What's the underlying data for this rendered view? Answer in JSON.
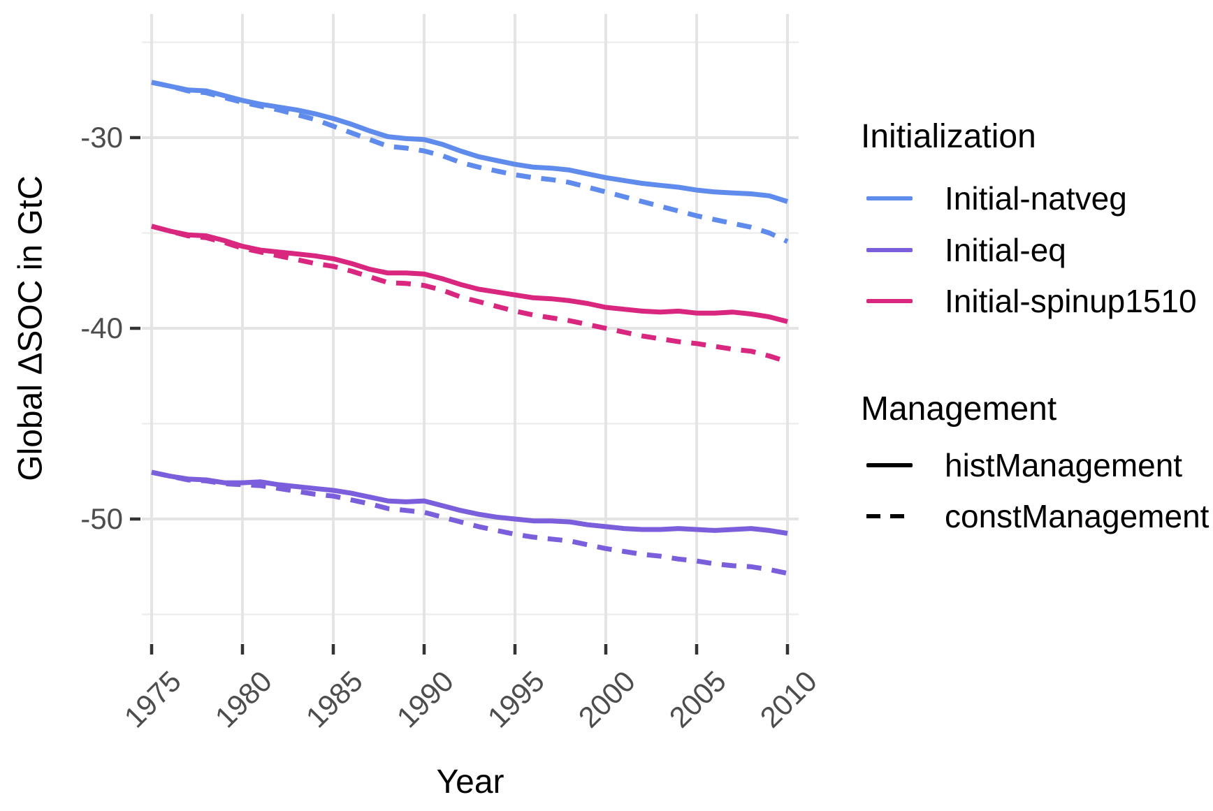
{
  "figure": {
    "x_axis_title": "Year",
    "y_axis_title": "Global ΔSOC in GtC"
  },
  "legend": {
    "initialization": {
      "title": "Initialization",
      "items": [
        {
          "label": "Initial-natveg",
          "color": "#5E8BEC"
        },
        {
          "label": "Initial-eq",
          "color": "#7A5EDC"
        },
        {
          "label": "Initial-spinup1510",
          "color": "#D9267E"
        }
      ]
    },
    "management": {
      "title": "Management",
      "items": [
        {
          "label": "histManagement",
          "linetype": "solid",
          "color": "#000000"
        },
        {
          "label": "constManagement",
          "linetype": "dashed",
          "color": "#000000"
        }
      ]
    }
  },
  "colors": {
    "major_gridline": "#e4e4e4",
    "minor_gridline": "#ededed",
    "tick_mark": "#333333",
    "tick_label": "#4d4d4d",
    "background": "#ffffff"
  },
  "chart_data": {
    "type": "line",
    "title": "",
    "xlabel": "Year",
    "ylabel": "Global ΔSOC in GtC",
    "legend_position": "right",
    "grid": "on",
    "xlim": [
      1973.5,
      2011.5
    ],
    "ylim": [
      -56.5,
      -23.5
    ],
    "x_ticks": [
      1975,
      1980,
      1985,
      1990,
      1995,
      2000,
      2005,
      2010
    ],
    "y_ticks": [
      -30,
      -40,
      -50
    ],
    "y_minor_ticks": [
      -25,
      -35,
      -45,
      -55
    ],
    "x": [
      1975,
      1976,
      1977,
      1978,
      1979,
      1980,
      1981,
      1982,
      1983,
      1984,
      1985,
      1986,
      1987,
      1988,
      1989,
      1990,
      1991,
      1992,
      1993,
      1994,
      1995,
      1996,
      1997,
      1998,
      1999,
      2000,
      2001,
      2002,
      2003,
      2004,
      2005,
      2006,
      2007,
      2008,
      2009,
      2010
    ],
    "series": [
      {
        "name": "Initial-natveg",
        "management": "constManagement",
        "color": "#5E8BEC",
        "linetype": "dashed",
        "values": [
          -27.1,
          -27.3,
          -27.55,
          -27.65,
          -27.9,
          -28.15,
          -28.35,
          -28.55,
          -28.8,
          -29.05,
          -29.4,
          -29.75,
          -30.1,
          -30.45,
          -30.55,
          -30.7,
          -30.95,
          -31.3,
          -31.55,
          -31.75,
          -31.95,
          -32.1,
          -32.2,
          -32.35,
          -32.6,
          -32.85,
          -33.1,
          -33.35,
          -33.6,
          -33.85,
          -34.1,
          -34.3,
          -34.5,
          -34.7,
          -35.0,
          -35.45
        ]
      },
      {
        "name": "Initial-natveg",
        "management": "histManagement",
        "color": "#5E8BEC",
        "linetype": "solid",
        "values": [
          -27.1,
          -27.3,
          -27.5,
          -27.55,
          -27.8,
          -28.05,
          -28.25,
          -28.4,
          -28.55,
          -28.75,
          -29.0,
          -29.3,
          -29.65,
          -29.95,
          -30.05,
          -30.1,
          -30.35,
          -30.7,
          -31.0,
          -31.2,
          -31.4,
          -31.55,
          -31.6,
          -31.7,
          -31.9,
          -32.1,
          -32.25,
          -32.4,
          -32.5,
          -32.6,
          -32.75,
          -32.85,
          -32.9,
          -32.95,
          -33.05,
          -33.35
        ]
      },
      {
        "name": "Initial-spinup1510",
        "management": "constManagement",
        "color": "#D9267E",
        "linetype": "dashed",
        "values": [
          -34.65,
          -34.9,
          -35.15,
          -35.25,
          -35.5,
          -35.8,
          -36.0,
          -36.2,
          -36.4,
          -36.6,
          -36.75,
          -37.0,
          -37.3,
          -37.6,
          -37.65,
          -37.75,
          -38.0,
          -38.35,
          -38.6,
          -38.85,
          -39.1,
          -39.3,
          -39.45,
          -39.6,
          -39.8,
          -40.0,
          -40.2,
          -40.4,
          -40.55,
          -40.7,
          -40.8,
          -40.95,
          -41.1,
          -41.2,
          -41.45,
          -41.75
        ]
      },
      {
        "name": "Initial-spinup1510",
        "management": "histManagement",
        "color": "#D9267E",
        "linetype": "solid",
        "values": [
          -34.65,
          -34.9,
          -35.1,
          -35.15,
          -35.4,
          -35.7,
          -35.9,
          -36.0,
          -36.1,
          -36.2,
          -36.35,
          -36.6,
          -36.9,
          -37.1,
          -37.1,
          -37.15,
          -37.4,
          -37.7,
          -37.95,
          -38.1,
          -38.25,
          -38.4,
          -38.45,
          -38.55,
          -38.7,
          -38.9,
          -39.0,
          -39.1,
          -39.15,
          -39.1,
          -39.2,
          -39.2,
          -39.15,
          -39.25,
          -39.4,
          -39.65
        ]
      },
      {
        "name": "Initial-eq",
        "management": "constManagement",
        "color": "#7A5EDC",
        "linetype": "dashed",
        "values": [
          -47.55,
          -47.75,
          -47.95,
          -48.0,
          -48.15,
          -48.2,
          -48.25,
          -48.4,
          -48.55,
          -48.7,
          -48.8,
          -49.0,
          -49.2,
          -49.45,
          -49.55,
          -49.65,
          -49.9,
          -50.15,
          -50.4,
          -50.6,
          -50.8,
          -50.95,
          -51.05,
          -51.15,
          -51.35,
          -51.55,
          -51.7,
          -51.85,
          -51.95,
          -52.1,
          -52.2,
          -52.35,
          -52.45,
          -52.5,
          -52.65,
          -52.85
        ]
      },
      {
        "name": "Initial-eq",
        "management": "histManagement",
        "color": "#7A5EDC",
        "linetype": "solid",
        "values": [
          -47.55,
          -47.75,
          -47.9,
          -47.95,
          -48.1,
          -48.1,
          -48.05,
          -48.2,
          -48.3,
          -48.4,
          -48.5,
          -48.65,
          -48.85,
          -49.05,
          -49.1,
          -49.05,
          -49.3,
          -49.55,
          -49.75,
          -49.9,
          -50.0,
          -50.1,
          -50.1,
          -50.15,
          -50.3,
          -50.4,
          -50.5,
          -50.55,
          -50.55,
          -50.5,
          -50.55,
          -50.6,
          -50.55,
          -50.5,
          -50.6,
          -50.75
        ]
      }
    ]
  }
}
